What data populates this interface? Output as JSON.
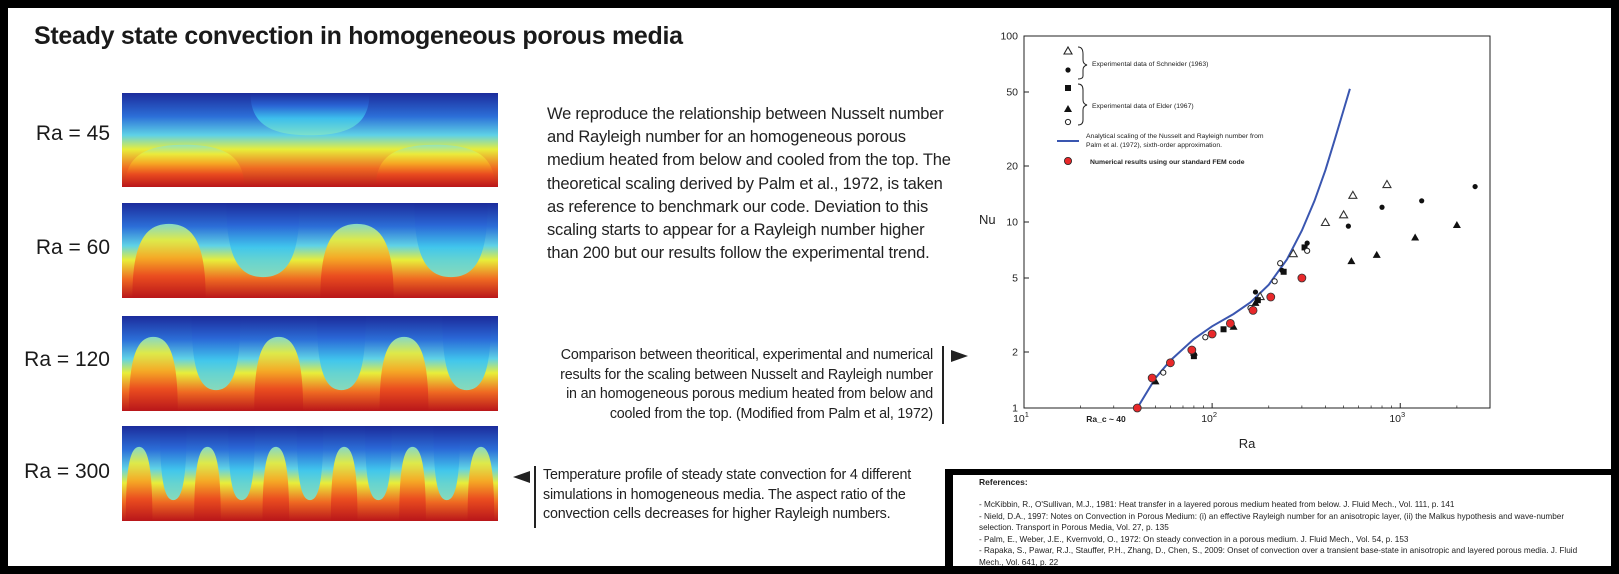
{
  "title": "Steady state convection in homogeneous porous media",
  "panels": [
    {
      "label": "Ra = 45",
      "cells": 3
    },
    {
      "label": "Ra = 60",
      "cells": 4
    },
    {
      "label": "Ra = 120",
      "cells": 6
    },
    {
      "label": "Ra = 300",
      "cells": 11
    }
  ],
  "description": "We reproduce the relationship between Nusselt number and Rayleigh number for an homogeneous porous medium heated from below and cooled from the top. The theoretical scaling derived by Palm et al., 1972, is taken as reference to benchmark our code. Deviation to this scaling starts to appear for a Rayleigh number higher than 200 but our results follow the experimental trend.",
  "chart_caption": "Comparison between theoritical, experimental and numerical results for the scaling between Nusselt and Rayleigh number in an homogeneous porous medium heated from below and cooled from the top.  (Modified from Palm et al, 1972)",
  "profile_caption": "Temperature profile of steady state convection for 4 different simulations in homogeneous media. The aspect ratio of the convection cells decreases for higher Rayleigh numbers.",
  "references": {
    "title": "References:",
    "items": [
      "- McKibbin, R., O'Sullivan, M.J., 1981: Heat transfer in a layered porous medium heated from below. J. Fluid Mech., Vol. 111, p. 141",
      "- Nield, D.A., 1997: Notes on Convection in Porous Medium: (i) an effective Rayleigh number for an anisotropic layer, (ii) the Malkus hypothesis and wave-number selection. Transport in Porous Media, Vol. 27, p. 135",
      "- Palm, E., Weber, J.E., Kvernvold, O., 1972: On steady convection in a porous medium. J. Fluid Mech., Vol. 54, p. 153",
      "- Rapaka, S., Pawar, R.J., Stauffer, P.H., Zhang, D., Chen, S., 2009: Onset of convection over a transient base-state in anisotropic and layered porous media. J. Fluid Mech., Vol. 641, p. 22"
    ]
  },
  "colors": {
    "curve": "#3a56b0",
    "numerical": "#e8282a",
    "cold": "#1e2a98",
    "hot": "#c41616"
  },
  "chart_data": {
    "type": "scatter",
    "x_scale": "log",
    "y_scale": "log",
    "xlim": [
      10,
      3000
    ],
    "ylim": [
      1,
      100
    ],
    "xlabel": "Ra",
    "ylabel": "Nu",
    "x_ticks": [
      {
        "v": 10,
        "b": "10",
        "e": "1"
      },
      {
        "v": 100,
        "b": "10",
        "e": "2"
      },
      {
        "v": 1000,
        "b": "10",
        "e": "3"
      }
    ],
    "y_ticks": [
      1,
      2,
      5,
      10,
      20,
      50,
      100
    ],
    "annotation": "Ra_c ~ 40",
    "legend": {
      "schneider_label": "Experimental data of Schneider (1963)",
      "elder_label": "Experimental data of Elder (1967)",
      "analytical_label_1": "Analytical scaling of the Nusselt and Rayleigh number from",
      "analytical_label_2": "Palm et al. (1972), sixth-order approximation.",
      "numerical_label": "Numerical results using our standard FEM code"
    },
    "series": [
      {
        "name": "Experimental data of Schneider (1963)",
        "marker": "triangle-open",
        "points": [
          [
            180,
            4.0
          ],
          [
            270,
            6.8
          ],
          [
            400,
            10.0
          ],
          [
            500,
            11.0
          ],
          [
            560,
            14.0
          ],
          [
            850,
            16.0
          ]
        ]
      },
      {
        "name": "Experimental data of Schneider (1963)",
        "marker": "dot",
        "points": [
          [
            170,
            4.2
          ],
          [
            235,
            5.5
          ],
          [
            320,
            7.7
          ],
          [
            530,
            9.5
          ],
          [
            800,
            12.0
          ],
          [
            1300,
            13.0
          ],
          [
            2500,
            15.5
          ]
        ]
      },
      {
        "name": "Experimental data of Elder (1967)",
        "marker": "square",
        "points": [
          [
            80,
            1.9
          ],
          [
            115,
            2.65
          ],
          [
            175,
            3.8
          ],
          [
            240,
            5.4
          ],
          [
            310,
            7.3
          ]
        ]
      },
      {
        "name": "Experimental data of Elder (1967)",
        "marker": "triangle",
        "points": [
          [
            50,
            1.4
          ],
          [
            80,
            2.0
          ],
          [
            130,
            2.75
          ],
          [
            170,
            3.7
          ],
          [
            550,
            6.2
          ],
          [
            750,
            6.7
          ],
          [
            1200,
            8.3
          ],
          [
            2000,
            9.7
          ]
        ]
      },
      {
        "name": "Experimental data of Elder (1967)",
        "marker": "circle-open",
        "points": [
          [
            55,
            1.55
          ],
          [
            92,
            2.4
          ],
          [
            160,
            3.45
          ],
          [
            215,
            4.8
          ],
          [
            230,
            6.0
          ],
          [
            320,
            7.0
          ]
        ]
      },
      {
        "name": "Numerical results using our standard FEM code",
        "marker": "red-dot",
        "points": [
          [
            40,
            1.0
          ],
          [
            48,
            1.45
          ],
          [
            60,
            1.75
          ],
          [
            78,
            2.05
          ],
          [
            100,
            2.5
          ],
          [
            125,
            2.85
          ],
          [
            165,
            3.35
          ],
          [
            205,
            3.95
          ],
          [
            300,
            5.0
          ]
        ]
      },
      {
        "name": "Analytical scaling of the Nusselt and Rayleigh number from Palm et al. (1972), sixth-order approximation.",
        "marker": "line",
        "points": [
          [
            40,
            1.0
          ],
          [
            50,
            1.45
          ],
          [
            60,
            1.8
          ],
          [
            80,
            2.35
          ],
          [
            100,
            2.75
          ],
          [
            130,
            3.2
          ],
          [
            160,
            3.7
          ],
          [
            200,
            4.6
          ],
          [
            250,
            6.3
          ],
          [
            300,
            9.0
          ],
          [
            350,
            13.0
          ],
          [
            400,
            19.0
          ],
          [
            450,
            28.0
          ],
          [
            500,
            40.0
          ],
          [
            540,
            52.0
          ]
        ]
      }
    ]
  }
}
